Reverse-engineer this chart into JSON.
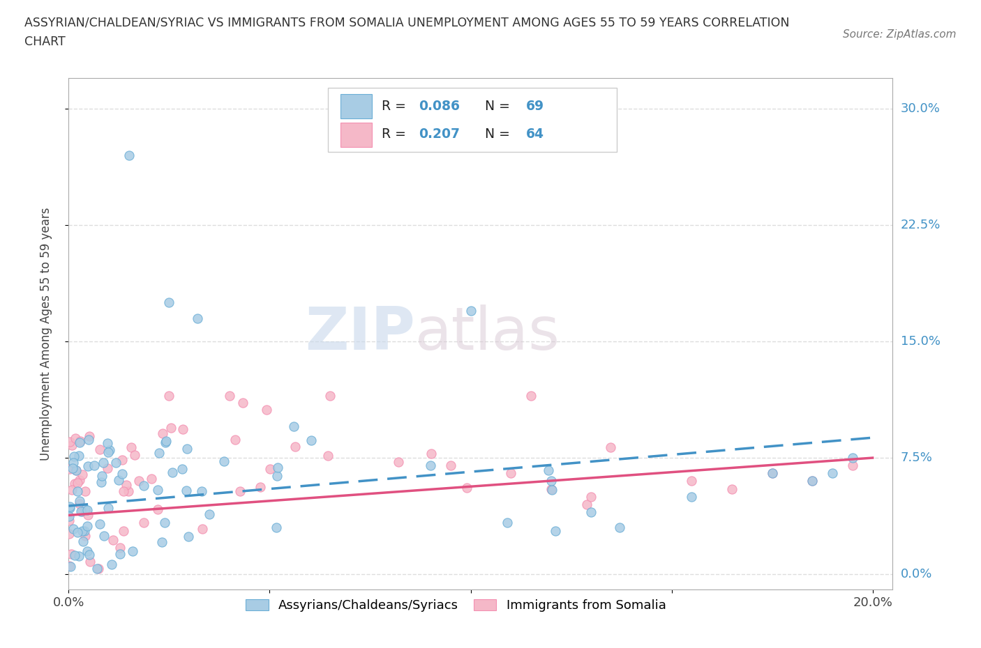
{
  "title_line1": "ASSYRIAN/CHALDEAN/SYRIAC VS IMMIGRANTS FROM SOMALIA UNEMPLOYMENT AMONG AGES 55 TO 59 YEARS CORRELATION",
  "title_line2": "CHART",
  "source_text": "Source: ZipAtlas.com",
  "ylabel": "Unemployment Among Ages 55 to 59 years",
  "xlim": [
    0.0,
    0.205
  ],
  "ylim": [
    -0.01,
    0.32
  ],
  "yticks": [
    0.0,
    0.075,
    0.15,
    0.225,
    0.3
  ],
  "ytick_labels": [
    "0.0%",
    "7.5%",
    "15.0%",
    "22.5%",
    "30.0%"
  ],
  "xticks": [
    0.0,
    0.05,
    0.1,
    0.15,
    0.2
  ],
  "xtick_labels": [
    "0.0%",
    "",
    "",
    "",
    "20.0%"
  ],
  "legend1_R": "0.086",
  "legend1_N": "69",
  "legend2_R": "0.207",
  "legend2_N": "64",
  "color_blue": "#a8cce4",
  "color_blue_edge": "#6baed6",
  "color_pink": "#f5b8c8",
  "color_pink_edge": "#f48fb1",
  "color_blue_line": "#4292c6",
  "color_pink_line": "#e05080",
  "watermark_text1": "ZIP",
  "watermark_text2": "atlas",
  "legend_label1": "Assyrians/Chaldeans/Syriacs",
  "legend_label2": "Immigrants from Somalia",
  "background_color": "#ffffff",
  "grid_color": "#dddddd",
  "axis_color": "#aaaaaa",
  "blue_line_start_y": 0.044,
  "blue_line_end_y": 0.088,
  "pink_line_start_y": 0.038,
  "pink_line_end_y": 0.075
}
